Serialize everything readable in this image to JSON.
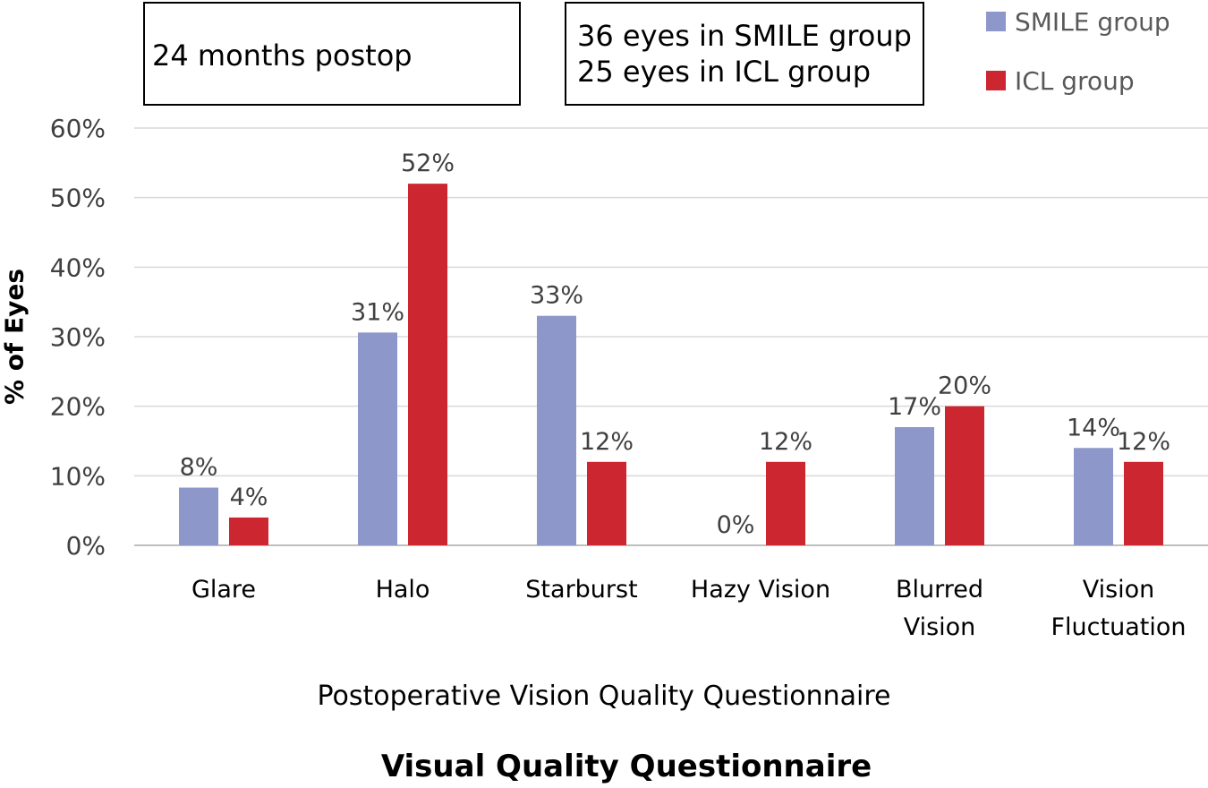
{
  "annotations": {
    "left_box": "24 months postop",
    "right_box_line1": "36 eyes in SMILE group",
    "right_box_line2": "25 eyes in ICL group"
  },
  "chart_data": {
    "type": "bar",
    "title": "Visual Quality Questionnaire",
    "xlabel": "Postoperative Vision Quality Questionnaire",
    "ylabel": "% of Eyes",
    "ylim": [
      0,
      60
    ],
    "y_ticks": [
      "0%",
      "10%",
      "20%",
      "30%",
      "40%",
      "50%",
      "60%"
    ],
    "categories": [
      [
        "Glare"
      ],
      [
        "Halo"
      ],
      [
        "Starburst"
      ],
      [
        "Hazy Vision"
      ],
      [
        "Blurred",
        "Vision"
      ],
      [
        "Vision",
        "Fluctuation"
      ]
    ],
    "series": [
      {
        "name": "SMILE group",
        "color": "#8e97c9",
        "values": [
          8.3,
          30.6,
          33.0,
          0,
          17.0,
          14.0
        ],
        "labels": [
          "8%",
          "31%",
          "33%",
          "0%",
          "17%",
          "14%"
        ]
      },
      {
        "name": "ICL group",
        "color": "#cc2631",
        "values": [
          4.0,
          52.0,
          12.0,
          12.0,
          20.0,
          12.0
        ],
        "labels": [
          "4%",
          "52%",
          "12%",
          "12%",
          "20%",
          "12%"
        ]
      }
    ],
    "legend_position": "top-right",
    "grid": true
  }
}
